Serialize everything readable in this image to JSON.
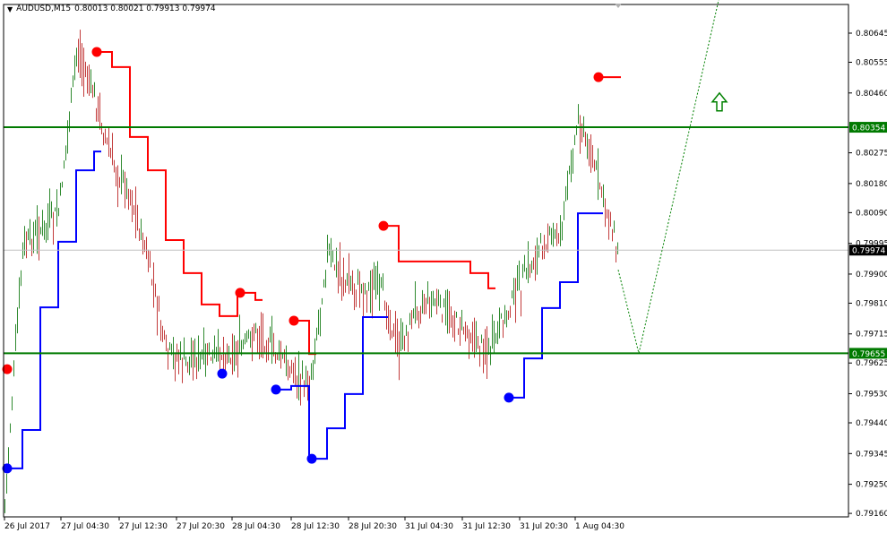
{
  "header": {
    "menu_icon": "triangle-down-icon",
    "symbol": "AUDUSD,M15",
    "ohlc": "0.80013 0.80021 0.79913 0.79974"
  },
  "colors": {
    "background": "#ffffff",
    "bull_bar": "#2f8a2f",
    "bear_bar": "#c23b3b",
    "resistance_line": "#ff0000",
    "support_line": "#0000ff",
    "horizontal_level": "#007a00",
    "current_price_line": "#c0c0c0",
    "projection": "#008000"
  },
  "chart_data": {
    "type": "line",
    "chart_kind": "ohlc-bars",
    "timeframe": "M15",
    "ylim": [
      0.79145,
      0.80815
    ],
    "grid": false,
    "y_ticks": [
      "0.80645",
      "0.80555",
      "0.80460",
      "0.80275",
      "0.80180",
      "0.80090",
      "0.79995",
      "0.79900",
      "0.79810",
      "0.79715",
      "0.79625",
      "0.79530",
      "0.79440",
      "0.79345",
      "0.79250",
      "0.79160"
    ],
    "x_ticks": [
      "26 Jul 2017",
      "27 Jul 04:30",
      "27 Jul 12:30",
      "27 Jul 20:30",
      "28 Jul 04:30",
      "28 Jul 12:30",
      "28 Jul 20:30",
      "31 Jul 04:30",
      "31 Jul 12:30",
      "31 Jul 20:30",
      "1 Aug 04:30"
    ],
    "close_samples": [
      0.79196,
      0.79986,
      0.80041,
      0.80097,
      0.80595,
      0.80457,
      0.80249,
      0.80157,
      0.79944,
      0.79667,
      0.79639,
      0.79645,
      0.79659,
      0.79659,
      0.79731,
      0.79673,
      0.79612,
      0.79556,
      0.79972,
      0.7988,
      0.79861,
      0.79861,
      0.79667,
      0.79811,
      0.7982,
      0.79764,
      0.79717,
      0.79667,
      0.79786,
      0.79897,
      0.8,
      0.80036,
      0.80387,
      0.80221,
      0.80027
    ],
    "last_close": 0.79974,
    "resistance_line": [
      null,
      null,
      null,
      null,
      null,
      0.80587,
      0.8054,
      0.80324,
      0.80221,
      0.80005,
      0.79903,
      0.79806,
      0.7977,
      0.79842,
      0.7982,
      null,
      0.79756,
      0.79653,
      null,
      null,
      null,
      0.80049,
      0.79939,
      0.79939,
      0.79939,
      0.79939,
      0.79903,
      0.79856,
      null,
      null,
      null,
      null,
      null,
      0.80509,
      0.80509
    ],
    "support_line": [
      0.79299,
      0.79418,
      0.79797,
      0.8,
      0.80221,
      0.80279,
      null,
      null,
      null,
      null,
      null,
      null,
      0.79592,
      null,
      null,
      0.79543,
      0.79554,
      0.79329,
      0.79423,
      0.79529,
      0.79767,
      0.79767,
      null,
      null,
      null,
      null,
      null,
      null,
      0.79518,
      0.79639,
      0.79795,
      0.79875,
      0.80088,
      0.80088,
      null
    ],
    "resistance_dots": [
      0.79606,
      null,
      null,
      null,
      null,
      0.80587,
      null,
      null,
      null,
      null,
      null,
      null,
      null,
      0.79842,
      null,
      null,
      0.79756,
      null,
      null,
      null,
      null,
      0.80049,
      null,
      null,
      null,
      null,
      null,
      null,
      null,
      null,
      null,
      null,
      null,
      0.80509,
      null
    ],
    "support_dots": [
      0.79299,
      null,
      null,
      null,
      null,
      null,
      null,
      null,
      null,
      null,
      null,
      null,
      0.79592,
      null,
      null,
      0.79543,
      null,
      0.79329,
      null,
      null,
      null,
      null,
      null,
      null,
      null,
      null,
      null,
      null,
      0.79518,
      null,
      null,
      null,
      null,
      null,
      null
    ],
    "levels": [
      {
        "price": 0.80354,
        "label": "0.80354"
      },
      {
        "price": 0.79655,
        "label": "0.79655"
      }
    ],
    "current_price_label": "0.79974",
    "projection_prices": [
      0.79913,
      0.79655,
      0.8082
    ],
    "signal_arrow": {
      "direction": "up",
      "icon": "arrow-up-icon",
      "price": 0.8046
    }
  }
}
